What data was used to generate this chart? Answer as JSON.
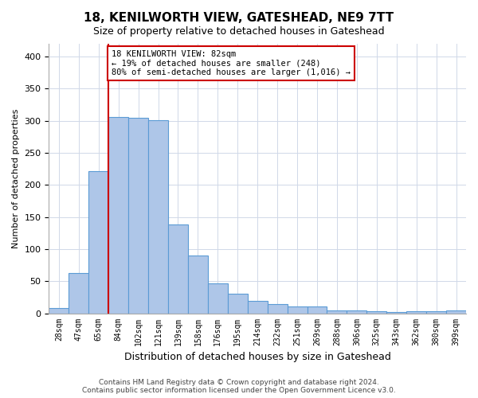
{
  "title": "18, KENILWORTH VIEW, GATESHEAD, NE9 7TT",
  "subtitle": "Size of property relative to detached houses in Gateshead",
  "xlabel": "Distribution of detached houses by size in Gateshead",
  "ylabel": "Number of detached properties",
  "categories": [
    "28sqm",
    "47sqm",
    "65sqm",
    "84sqm",
    "102sqm",
    "121sqm",
    "139sqm",
    "158sqm",
    "176sqm",
    "195sqm",
    "214sqm",
    "232sqm",
    "251sqm",
    "269sqm",
    "288sqm",
    "306sqm",
    "325sqm",
    "343sqm",
    "362sqm",
    "380sqm",
    "399sqm"
  ],
  "values": [
    8,
    63,
    221,
    306,
    305,
    301,
    139,
    90,
    46,
    30,
    19,
    14,
    11,
    10,
    4,
    5,
    3,
    2,
    3,
    3,
    5
  ],
  "bar_color": "#aec6e8",
  "bar_edge_color": "#5b9bd5",
  "vline_x": 2.5,
  "vline_color": "#cc0000",
  "annotation_line1": "18 KENILWORTH VIEW: 82sqm",
  "annotation_line2": "← 19% of detached houses are smaller (248)",
  "annotation_line3": "80% of semi-detached houses are larger (1,016) →",
  "annotation_box_color": "#ffffff",
  "annotation_box_edge": "#cc0000",
  "footer_line1": "Contains HM Land Registry data © Crown copyright and database right 2024.",
  "footer_line2": "Contains public sector information licensed under the Open Government Licence v3.0.",
  "ylim": [
    0,
    420
  ],
  "yticks": [
    0,
    50,
    100,
    150,
    200,
    250,
    300,
    350,
    400
  ],
  "background_color": "#ffffff",
  "grid_color": "#d0d8e8"
}
